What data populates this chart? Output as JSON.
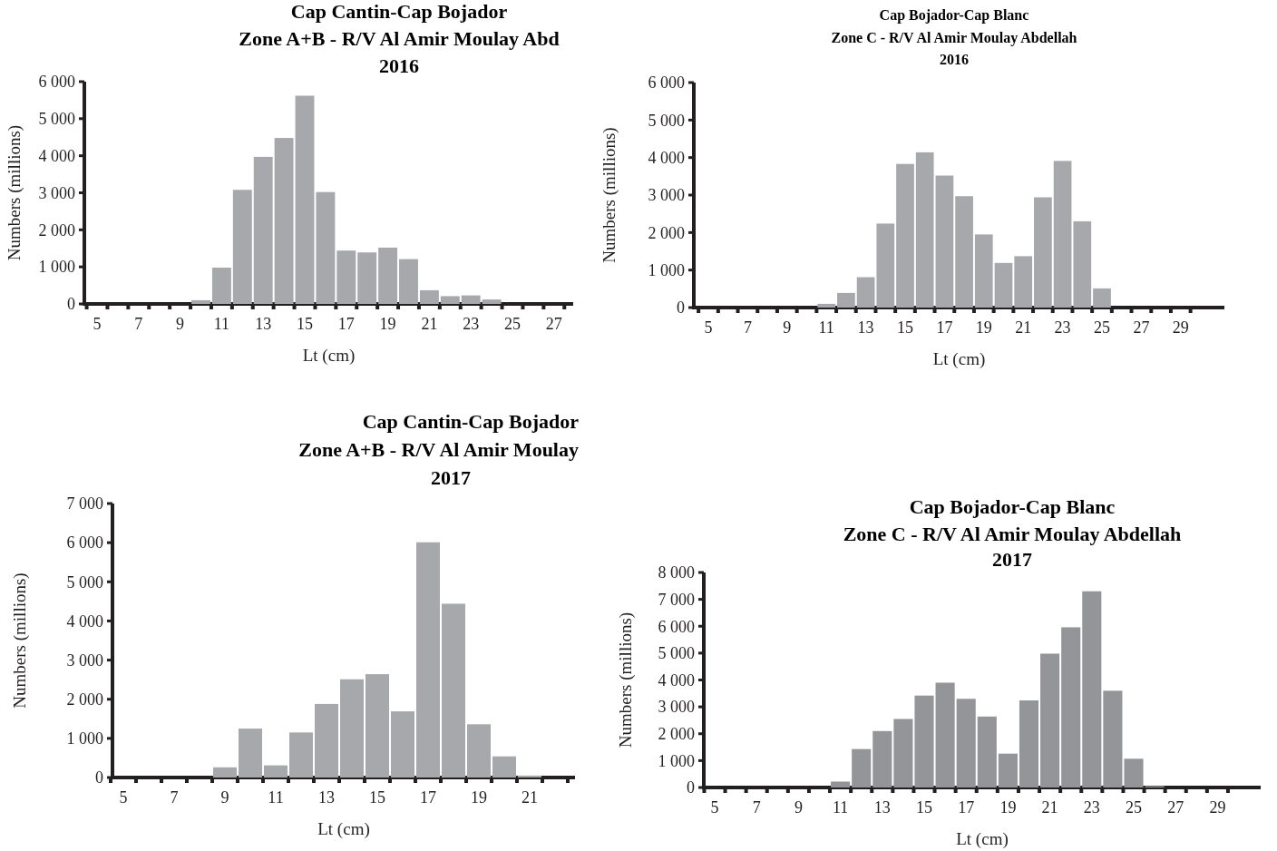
{
  "chart_data": [
    {
      "type": "bar",
      "title": "Cap Cantin-Cap Bojador\nZone A+B - R/V Al Amir Moulay Abd\n2016",
      "xlabel": "Lt (cm)",
      "ylabel": "Numbers (millions)",
      "categories": [
        "5",
        null,
        "7",
        null,
        "9",
        null,
        "11",
        null,
        "13",
        null,
        "15",
        null,
        "17",
        null,
        "19",
        null,
        "21",
        null,
        "23",
        null,
        "25",
        null,
        "27"
      ],
      "values": [
        0,
        0,
        0,
        0,
        0,
        100,
        980,
        3080,
        3970,
        4480,
        5620,
        3020,
        1440,
        1390,
        1520,
        1210,
        370,
        210,
        230,
        120,
        0,
        0,
        0
      ],
      "color": "#a6a8ab",
      "ylim": [
        0,
        6000
      ],
      "yticks": [
        {
          "value": 0,
          "label": "0"
        },
        {
          "value": 1000,
          "label": "1 000"
        },
        {
          "value": 2000,
          "label": "2 000"
        },
        {
          "value": 3000,
          "label": "3 000"
        },
        {
          "value": 4000,
          "label": "4 000"
        },
        {
          "value": 5000,
          "label": "5 000"
        },
        {
          "value": 6000,
          "label": "6 000"
        }
      ]
    },
    {
      "type": "bar",
      "title": "Cap Bojador-Cap Blanc\nZone C - R/V Al Amir Moulay Abdellah\n2016",
      "xlabel": "Lt (cm)",
      "ylabel": "Numbers (millions)",
      "categories": [
        "5",
        null,
        "7",
        null,
        "9",
        null,
        "11",
        null,
        "13",
        null,
        "15",
        null,
        "17",
        null,
        "19",
        null,
        "21",
        null,
        "23",
        null,
        "25",
        null,
        "27",
        null,
        "29"
      ],
      "values": [
        0,
        0,
        0,
        0,
        0,
        0,
        100,
        390,
        810,
        2240,
        3830,
        4140,
        3520,
        2970,
        1950,
        1190,
        1370,
        2940,
        3910,
        2300,
        510,
        0,
        0,
        0,
        0
      ],
      "color": "#a6a8ab",
      "ylim": [
        0,
        6000
      ],
      "yticks": [
        {
          "value": 0,
          "label": "0"
        },
        {
          "value": 1000,
          "label": "1 000"
        },
        {
          "value": 2000,
          "label": "2 000"
        },
        {
          "value": 3000,
          "label": "3 000"
        },
        {
          "value": 4000,
          "label": "4 000"
        },
        {
          "value": 5000,
          "label": "5 000"
        },
        {
          "value": 6000,
          "label": "6 000"
        }
      ]
    },
    {
      "type": "bar",
      "title": "Cap Cantin-Cap Bojador\nZone A+B - R/V Al Amir Moulay\n2017",
      "xlabel": "Lt (cm)",
      "ylabel": "Numbers (millions)",
      "categories": [
        "5",
        null,
        "7",
        null,
        "9",
        null,
        "11",
        null,
        "13",
        null,
        "15",
        null,
        "17",
        null,
        "19",
        null,
        "21",
        null
      ],
      "values": [
        0,
        0,
        0,
        0,
        260,
        1250,
        310,
        1150,
        1880,
        2510,
        2640,
        1690,
        6010,
        4440,
        1360,
        540,
        50,
        0
      ],
      "color": "#a6a8ab",
      "ylim": [
        0,
        7000
      ],
      "yticks": [
        {
          "value": 0,
          "label": "0"
        },
        {
          "value": 1000,
          "label": "1 000"
        },
        {
          "value": 2000,
          "label": "2 000"
        },
        {
          "value": 3000,
          "label": "3 000"
        },
        {
          "value": 4000,
          "label": "4 000"
        },
        {
          "value": 5000,
          "label": "5 000"
        },
        {
          "value": 6000,
          "label": "6 000"
        },
        {
          "value": 7000,
          "label": "7 000"
        }
      ]
    },
    {
      "type": "bar",
      "title": "Cap Bojador-Cap Blanc\nZone C - R/V Al Amir Moulay Abdellah\n2017",
      "xlabel": "Lt (cm)",
      "ylabel": "Numbers (millions)",
      "categories": [
        "5",
        null,
        "7",
        null,
        "9",
        null,
        "11",
        null,
        "13",
        null,
        "15",
        null,
        "17",
        null,
        "19",
        null,
        "21",
        null,
        "23",
        null,
        "25",
        null,
        "27",
        null,
        "29"
      ],
      "values": [
        0,
        0,
        0,
        0,
        0,
        0,
        220,
        1430,
        2100,
        2550,
        3420,
        3900,
        3300,
        2640,
        1260,
        3240,
        4980,
        5960,
        7300,
        3600,
        1070,
        50,
        0,
        0,
        0
      ],
      "color": "#939598",
      "ylim": [
        0,
        8000
      ],
      "yticks": [
        {
          "value": 0,
          "label": "0"
        },
        {
          "value": 1000,
          "label": "1 000"
        },
        {
          "value": 2000,
          "label": "2 000"
        },
        {
          "value": 3000,
          "label": "3 000"
        },
        {
          "value": 4000,
          "label": "4 000"
        },
        {
          "value": 5000,
          "label": "5 000"
        },
        {
          "value": 6000,
          "label": "6 000"
        },
        {
          "value": 7000,
          "label": "7 000"
        },
        {
          "value": 8000,
          "label": "8 000"
        }
      ]
    }
  ]
}
